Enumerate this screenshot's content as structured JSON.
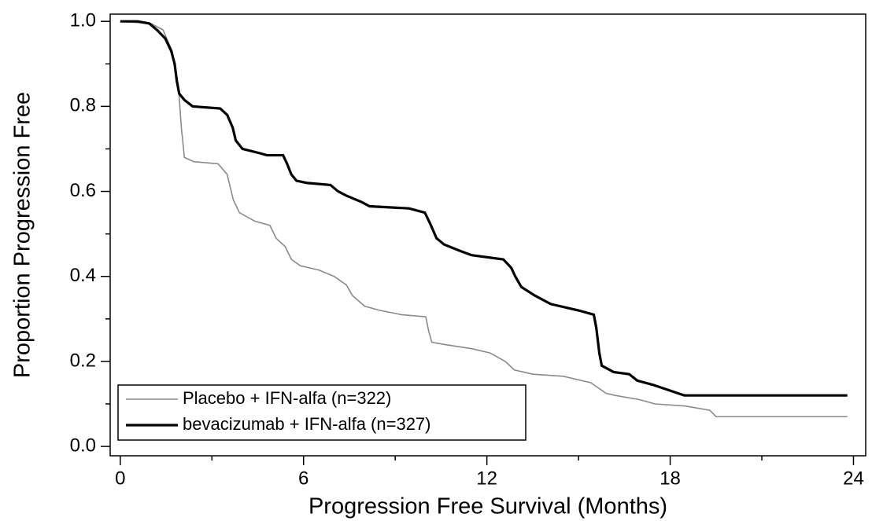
{
  "chart_data": {
    "type": "line",
    "x_label": "Progression Free Survival (Months)",
    "y_label": "Proportion Progression Free",
    "xlim": [
      -0.33,
      24.4
    ],
    "ylim": [
      -0.022,
      1.017
    ],
    "xticks": [
      0,
      6,
      12,
      18,
      24
    ],
    "xminorticks": [
      3,
      9,
      15,
      21
    ],
    "yticks": [
      {
        "value": 0,
        "label": "0.0"
      },
      {
        "value": 0.2,
        "label": "0.2"
      },
      {
        "value": 0.4,
        "label": "0.4"
      },
      {
        "value": 0.6,
        "label": "0.6"
      },
      {
        "value": 0.8,
        "label": "0.8"
      },
      {
        "value": 1,
        "label": "1.0"
      }
    ],
    "yminorticks": [
      0.1,
      0.3,
      0.5,
      0.7,
      0.9
    ],
    "grid": false,
    "legend": "lower left",
    "series": [
      {
        "name": "Placebo + IFN-alfa (n=322)",
        "color": "#8a8a8a",
        "line_width": 1.6,
        "x": [
          0,
          1.0,
          1.4,
          1.7,
          1.9,
          2.0,
          2.1,
          2.4,
          3.2,
          3.5,
          3.7,
          3.9,
          4.4,
          4.9,
          5.1,
          5.4,
          5.6,
          5.9,
          6.5,
          7.0,
          7.4,
          7.6,
          8.0,
          8.5,
          9.2,
          10.0,
          10.1,
          10.2,
          10.6,
          11.5,
          12.1,
          12.6,
          12.9,
          13.5,
          14.5,
          15.4,
          15.9,
          16.2,
          17.0,
          17.5,
          18.5,
          19.3,
          19.5,
          23.8
        ],
        "values": [
          1.0,
          0.995,
          0.98,
          0.93,
          0.85,
          0.75,
          0.68,
          0.67,
          0.665,
          0.64,
          0.58,
          0.55,
          0.53,
          0.52,
          0.49,
          0.47,
          0.44,
          0.425,
          0.415,
          0.4,
          0.38,
          0.355,
          0.33,
          0.32,
          0.31,
          0.305,
          0.27,
          0.245,
          0.24,
          0.23,
          0.22,
          0.2,
          0.18,
          0.17,
          0.165,
          0.15,
          0.125,
          0.12,
          0.11,
          0.1,
          0.095,
          0.085,
          0.07,
          0.07
        ]
      },
      {
        "name": "bevacizumab + IFN-alfa (n=327)",
        "color": "#000000",
        "line_width": 3.2,
        "x": [
          0,
          0.57,
          0.95,
          1.2,
          1.47,
          1.67,
          1.78,
          1.85,
          1.93,
          2.1,
          2.37,
          3.27,
          3.5,
          3.68,
          3.78,
          4.0,
          4.56,
          4.8,
          5.33,
          5.46,
          5.6,
          5.77,
          6.1,
          6.88,
          7.13,
          7.4,
          7.9,
          8.16,
          9.45,
          9.97,
          10.17,
          10.35,
          10.6,
          11.12,
          11.5,
          12.54,
          12.8,
          12.93,
          13.13,
          13.57,
          14.09,
          15.0,
          15.5,
          15.58,
          15.68,
          15.76,
          16.15,
          16.66,
          16.92,
          17.43,
          18.46,
          23.8
        ],
        "values": [
          1.0,
          1.0,
          0.995,
          0.98,
          0.96,
          0.93,
          0.9,
          0.86,
          0.83,
          0.815,
          0.8,
          0.795,
          0.78,
          0.75,
          0.72,
          0.7,
          0.69,
          0.685,
          0.685,
          0.665,
          0.64,
          0.625,
          0.62,
          0.615,
          0.6,
          0.59,
          0.575,
          0.565,
          0.56,
          0.55,
          0.52,
          0.49,
          0.475,
          0.46,
          0.45,
          0.44,
          0.42,
          0.4,
          0.375,
          0.355,
          0.335,
          0.32,
          0.31,
          0.28,
          0.22,
          0.19,
          0.175,
          0.17,
          0.155,
          0.145,
          0.12,
          0.12
        ]
      }
    ]
  }
}
